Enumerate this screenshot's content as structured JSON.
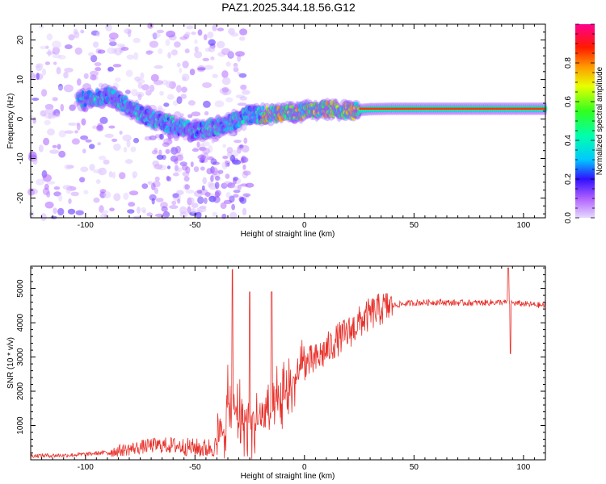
{
  "title": "PAZ1.2025.344.18.56.G12",
  "chart_data": [
    {
      "type": "heatmap",
      "name": "spectrogram",
      "xlabel": "Height of straight line (km)",
      "ylabel": "Frequency (Hz)",
      "xlim": [
        -125,
        110
      ],
      "ylim": [
        -25,
        24
      ],
      "xticks": [
        -100,
        -50,
        0,
        50,
        100
      ],
      "xtick_labels": [
        "-100",
        "-50",
        "0",
        "50",
        "100"
      ],
      "yticks": [
        -20,
        -10,
        0,
        10,
        20
      ],
      "ytick_labels": [
        "-20",
        "-10",
        "0",
        "10",
        "20"
      ],
      "ridge": {
        "x": [
          -100,
          -90,
          -80,
          -70,
          -60,
          -50,
          -40,
          -30,
          -25,
          -20,
          -10,
          0,
          10,
          20,
          30,
          40,
          50,
          60,
          70,
          80,
          90,
          100,
          110
        ],
        "y": [
          5,
          6,
          3,
          0,
          -1.5,
          -3,
          -2,
          0,
          1,
          1,
          1.5,
          2,
          2.5,
          2,
          2.5,
          2.6,
          2.6,
          2.6,
          2.6,
          2.6,
          2.6,
          2.6,
          2.6
        ]
      },
      "colorbar": {
        "label": "Normalized spectral amplitude",
        "range": [
          0,
          1
        ],
        "ticks": [
          "0.0",
          "0.2",
          "0.4",
          "0.6",
          "0.8"
        ]
      }
    },
    {
      "type": "line",
      "name": "snr",
      "xlabel": "Height of straight line (km)",
      "ylabel": "SNR (10 * v/v)",
      "xlim": [
        -125,
        110
      ],
      "ylim": [
        0,
        5650
      ],
      "xticks": [
        -100,
        -50,
        0,
        50,
        100
      ],
      "xtick_labels": [
        "-100",
        "-50",
        "0",
        "50",
        "100"
      ],
      "yticks": [
        1000,
        2000,
        3000,
        4000,
        5000
      ],
      "ytick_labels": [
        "1000",
        "2000",
        "3000",
        "4000",
        "5000"
      ],
      "color": "#e8302a",
      "trend": {
        "x": [
          -125,
          -110,
          -100,
          -90,
          -80,
          -70,
          -60,
          -50,
          -45,
          -40,
          -38,
          -35,
          -30,
          -25,
          -20,
          -15,
          -10,
          -5,
          0,
          5,
          10,
          15,
          20,
          25,
          30,
          35,
          40,
          45,
          50,
          60,
          70,
          80,
          90,
          100,
          110
        ],
        "y": [
          120,
          130,
          160,
          220,
          310,
          420,
          420,
          350,
          330,
          400,
          700,
          1500,
          1300,
          1000,
          1200,
          1350,
          1700,
          2300,
          2800,
          2900,
          3200,
          3500,
          3700,
          4000,
          4250,
          4400,
          4500,
          4550,
          4580,
          4600,
          4580,
          4580,
          4600,
          4550,
          4500
        ]
      },
      "spikes": [
        {
          "x": -33,
          "y": 5550
        },
        {
          "x": -25,
          "y": 4900
        },
        {
          "x": -15,
          "y": 4900
        },
        {
          "x": 93,
          "y": 5600
        },
        {
          "x": 94,
          "y": 3100
        }
      ]
    }
  ]
}
